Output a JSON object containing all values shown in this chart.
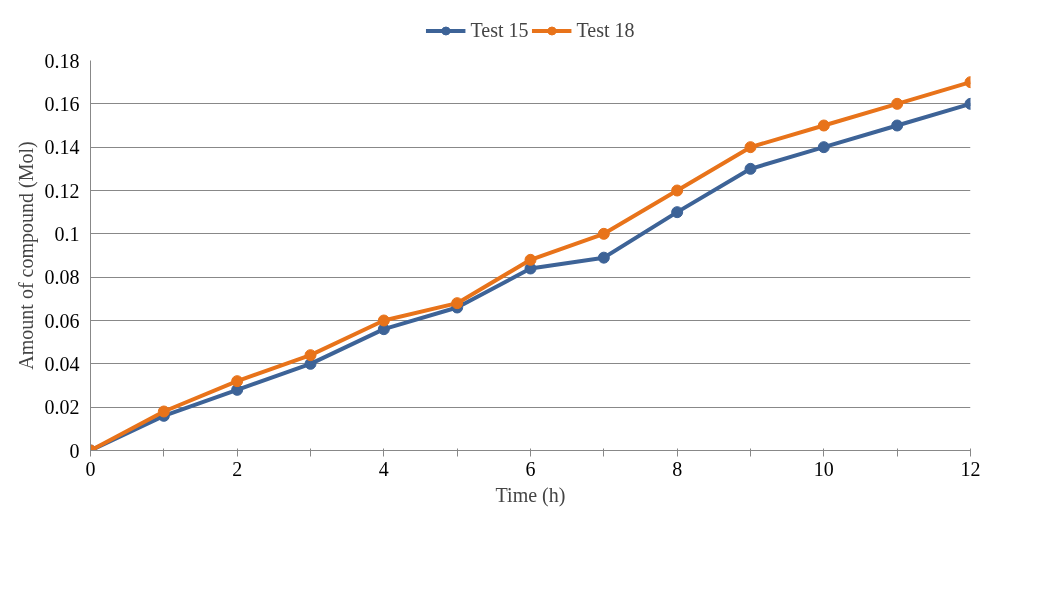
{
  "chart_data": {
    "type": "line",
    "xlabel": "Time (h)",
    "ylabel": "Amount of compound (Mol)",
    "x": [
      0,
      1,
      2,
      3,
      4,
      5,
      6,
      7,
      8,
      9,
      10,
      11,
      12
    ],
    "series": [
      {
        "name": "Test 15",
        "color": "#3d6397",
        "values": [
          0,
          0.016,
          0.028,
          0.04,
          0.056,
          0.066,
          0.084,
          0.089,
          0.11,
          0.13,
          0.14,
          0.15,
          0.16
        ]
      },
      {
        "name": "Test 18",
        "color": "#e8731a",
        "values": [
          0,
          0.018,
          0.032,
          0.044,
          0.06,
          0.068,
          0.088,
          0.1,
          0.12,
          0.14,
          0.15,
          0.16,
          0.17
        ]
      }
    ],
    "xlim": [
      0,
      12
    ],
    "xticks": [
      0,
      {
        "value": 1,
        "label": null
      },
      2,
      {
        "value": 3,
        "label": null
      },
      4,
      {
        "value": 5,
        "label": null
      },
      6,
      {
        "value": 7,
        "label": null
      },
      8,
      {
        "value": 9,
        "label": null
      },
      10,
      {
        "value": 11,
        "label": null
      },
      12
    ],
    "ylim": [
      0,
      0.18
    ],
    "yticks": [
      0,
      {
        "value": 0.02,
        "label": "0.02"
      },
      {
        "value": 0.04,
        "label": "0.04"
      },
      {
        "value": 0.06,
        "label": "0.06"
      },
      {
        "value": 0.08,
        "label": "0.08"
      },
      {
        "value": 0.1,
        "label": "0.1"
      },
      {
        "value": 0.12,
        "label": "0.12"
      },
      {
        "value": 0.14,
        "label": "0.14"
      },
      {
        "value": 0.16,
        "label": "0.16"
      },
      {
        "value": 0.18,
        "label": "0.18"
      }
    ],
    "grid": "y",
    "legend": "top",
    "marker": "circle",
    "line_style": "solid"
  }
}
